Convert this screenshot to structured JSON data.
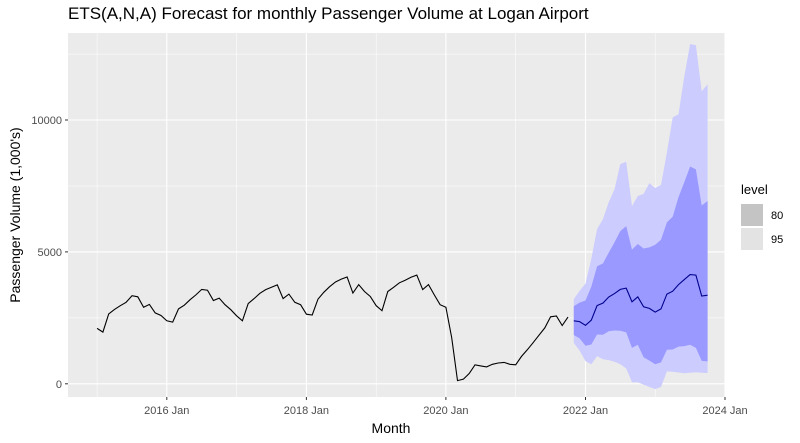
{
  "chart_data": {
    "type": "line",
    "title": "ETS(A,N,A) Forecast for monthly Passenger Volume at Logan Airport",
    "xlabel": "Month",
    "ylabel": "Passenger Volume (1,000's)",
    "x_ticks": [
      "2016 Jan",
      "2018 Jan",
      "2020 Jan",
      "2022 Jan",
      "2024 Jan"
    ],
    "y_ticks": [
      "0",
      "5000",
      "10000"
    ],
    "xlim": [
      "2014-08",
      "2024-01"
    ],
    "ylim": [
      -500,
      13300
    ],
    "grid": true,
    "legend": {
      "title": "level",
      "position": "right",
      "entries": [
        "80",
        "95"
      ]
    },
    "colors": {
      "panel": "#ebebeb",
      "grid": "#ffffff",
      "line": "#000000",
      "forecast_line": "#00008b",
      "band80": "#9999ff",
      "band95": "#ccccff",
      "legend80": "#c4c4c4",
      "legend95": "#e3e3e3"
    },
    "history": {
      "start": "2015-01",
      "values": [
        2100,
        1960,
        2650,
        2820,
        2960,
        3090,
        3340,
        3300,
        2900,
        3010,
        2690,
        2590,
        2390,
        2340,
        2840,
        2980,
        3190,
        3370,
        3580,
        3550,
        3160,
        3250,
        3000,
        2810,
        2580,
        2390,
        3040,
        3230,
        3430,
        3570,
        3660,
        3750,
        3230,
        3400,
        3090,
        3000,
        2640,
        2610,
        3210,
        3470,
        3680,
        3860,
        3970,
        4050,
        3440,
        3760,
        3500,
        3310,
        2960,
        2770,
        3500,
        3660,
        3830,
        3930,
        4040,
        4120,
        3570,
        3760,
        3370,
        3000,
        2900,
        1750,
        120,
        180,
        390,
        720,
        680,
        640,
        740,
        790,
        810,
        740,
        720,
        1040,
        1290,
        1560,
        1840,
        2120,
        2540,
        2570,
        2210,
        2530
      ]
    },
    "forecast": {
      "start": "2021-11",
      "mean": [
        2390,
        2360,
        2220,
        2410,
        2970,
        3060,
        3290,
        3420,
        3580,
        3630,
        3110,
        3300,
        2920,
        2860,
        2720,
        2840,
        3400,
        3510,
        3760,
        3950,
        4140,
        4120,
        3330,
        3360
      ],
      "lo80": [
        1850,
        1720,
        1440,
        1490,
        1870,
        1860,
        1990,
        2020,
        2010,
        1950,
        1360,
        1480,
        1010,
        880,
        740,
        810,
        1290,
        1300,
        1410,
        1430,
        1480,
        1360,
        870,
        850
      ],
      "hi80": [
        2940,
        3080,
        3160,
        3680,
        4460,
        4560,
        4970,
        5360,
        5790,
        5980,
        5090,
        5300,
        5130,
        5170,
        5270,
        5460,
        6120,
        6330,
        7080,
        7640,
        8240,
        8130,
        6760,
        6930
      ],
      "lo95": [
        1550,
        1260,
        860,
        740,
        1050,
        930,
        900,
        840,
        740,
        580,
        60,
        60,
        -30,
        -120,
        -200,
        -120,
        470,
        460,
        430,
        400,
        420,
        440,
        420,
        410
      ],
      "hi95": [
        3210,
        3530,
        3800,
        4740,
        5870,
        6240,
        6880,
        7380,
        8330,
        8420,
        6740,
        7120,
        7200,
        7610,
        7420,
        7540,
        8770,
        10100,
        10220,
        11660,
        12880,
        12840,
        11090,
        11360
      ]
    }
  }
}
